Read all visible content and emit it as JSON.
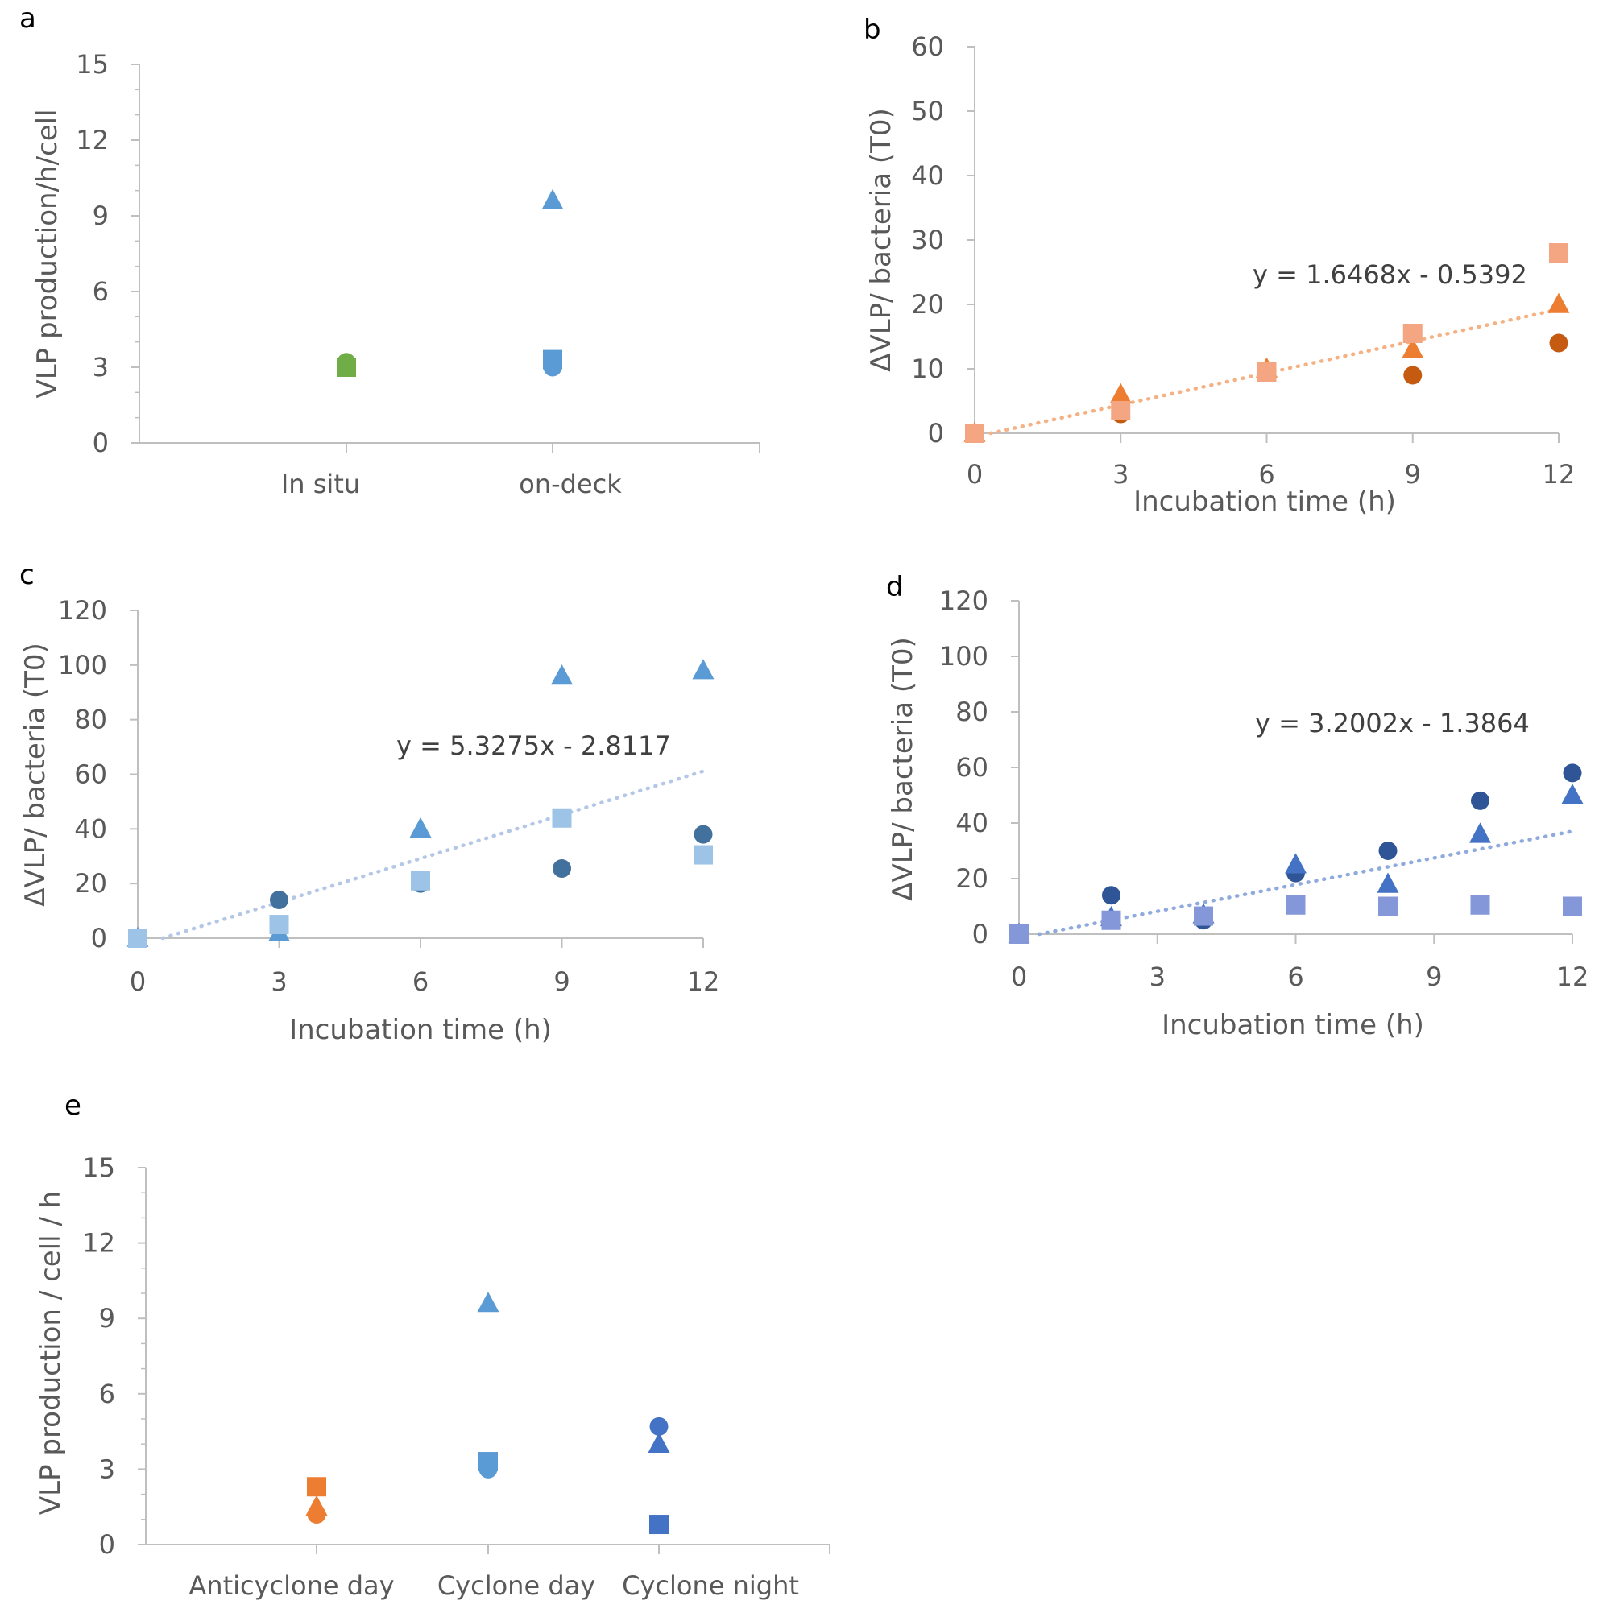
{
  "chart_data": [
    {
      "id": "a",
      "type": "scatter",
      "panel_label": "a",
      "ylabel": "VLP production/h/cell",
      "xlabel": "",
      "categories": [
        "In situ",
        "on-deck"
      ],
      "ylim": [
        0,
        15
      ],
      "yticks": [
        "0",
        "3",
        "6",
        "9",
        "12",
        "15"
      ],
      "grid": false,
      "series": [
        {
          "name": "circle",
          "marker": "circle",
          "colors": [
            "#70AD47",
            "#5B9BD5"
          ],
          "values": [
            3.2,
            3.0
          ]
        },
        {
          "name": "square",
          "marker": "square",
          "colors": [
            "#70AD47",
            "#5B9BD5"
          ],
          "values": [
            3.0,
            3.3
          ]
        },
        {
          "name": "triangle",
          "marker": "triangle",
          "colors": [
            "#70AD47",
            "#5B9BD5"
          ],
          "values": [
            null,
            9.6
          ]
        }
      ]
    },
    {
      "id": "b",
      "type": "scatter",
      "panel_label": "b",
      "ylabel": "ΔVLP/ bacteria (T0)",
      "xlabel": "Incubation time (h)",
      "xlim": [
        0,
        12
      ],
      "ylim": [
        0,
        60
      ],
      "xticks": [
        "0",
        "3",
        "6",
        "9",
        "12"
      ],
      "yticks": [
        "0",
        "10",
        "20",
        "30",
        "40",
        "50",
        "60"
      ],
      "grid": false,
      "trendline": {
        "slope": 1.6468,
        "intercept": -0.5392,
        "color": "#F4B183",
        "label": "y = 1.6468x - 0.5392"
      },
      "series": [
        {
          "name": "circle",
          "marker": "circle",
          "color": "#C55A11",
          "x": [
            0,
            3,
            6,
            9,
            12
          ],
          "y": [
            0,
            3,
            9.5,
            9,
            14
          ]
        },
        {
          "name": "triangle",
          "marker": "triangle",
          "color": "#ED7D31",
          "x": [
            0,
            3,
            6,
            9,
            12
          ],
          "y": [
            0,
            6,
            10,
            13,
            20
          ]
        },
        {
          "name": "square",
          "marker": "square",
          "color": "#F4A582",
          "x": [
            0,
            3,
            6,
            9,
            12
          ],
          "y": [
            0,
            3.5,
            9.5,
            15.5,
            28
          ]
        }
      ]
    },
    {
      "id": "c",
      "type": "scatter",
      "panel_label": "c",
      "ylabel": "ΔVLP/ bacteria (T0)",
      "xlabel": "Incubation time (h)",
      "xlim": [
        0,
        12
      ],
      "ylim": [
        0,
        120
      ],
      "xticks": [
        "0",
        "3",
        "6",
        "9",
        "12"
      ],
      "yticks": [
        "0",
        "20",
        "40",
        "60",
        "80",
        "100",
        "120"
      ],
      "grid": false,
      "trendline": {
        "slope": 5.3275,
        "intercept": -2.8117,
        "color": "#B4C7E7",
        "label": "y = 5.3275x - 2.8117"
      },
      "series": [
        {
          "name": "circle",
          "marker": "circle",
          "color": "#41719C",
          "x": [
            0,
            3,
            6,
            9,
            12
          ],
          "y": [
            0,
            14,
            20,
            25.5,
            38
          ]
        },
        {
          "name": "triangle",
          "marker": "triangle",
          "color": "#5B9BD5",
          "x": [
            0,
            3,
            6,
            9,
            12
          ],
          "y": [
            0,
            2,
            40,
            96,
            98
          ]
        },
        {
          "name": "square",
          "marker": "square",
          "color": "#9DC3E6",
          "x": [
            0,
            3,
            6,
            9,
            12
          ],
          "y": [
            0,
            5,
            21,
            44,
            30.5
          ]
        }
      ]
    },
    {
      "id": "d",
      "type": "scatter",
      "panel_label": "d",
      "ylabel": "ΔVLP/ bacteria (T0)",
      "xlabel": "Incubation time (h)",
      "xlim": [
        0,
        12
      ],
      "ylim": [
        0,
        120
      ],
      "xticks": [
        "0",
        "3",
        "6",
        "9",
        "12"
      ],
      "yticks": [
        "0",
        "20",
        "40",
        "60",
        "80",
        "100",
        "120"
      ],
      "grid": false,
      "trendline": {
        "slope": 3.2002,
        "intercept": -1.3864,
        "color": "#8FAADC",
        "label": "y = 3.2002x - 1.3864"
      },
      "series": [
        {
          "name": "circle",
          "marker": "circle",
          "color": "#2F5597",
          "x": [
            0,
            2,
            4,
            6,
            8,
            10,
            12
          ],
          "y": [
            0,
            14,
            5,
            22,
            30,
            48,
            58
          ]
        },
        {
          "name": "triangle",
          "marker": "triangle",
          "color": "#4472C4",
          "x": [
            0,
            2,
            4,
            6,
            8,
            10,
            12
          ],
          "y": [
            0,
            6,
            7,
            25,
            18,
            36,
            50
          ]
        },
        {
          "name": "square",
          "marker": "square",
          "color": "#8497D9",
          "x": [
            0,
            2,
            4,
            6,
            8,
            10,
            12
          ],
          "y": [
            0,
            5,
            6.5,
            10.5,
            10,
            10.5,
            10
          ]
        }
      ]
    },
    {
      "id": "e",
      "type": "scatter",
      "panel_label": "e",
      "ylabel": "VLP production / cell / h",
      "xlabel": "",
      "categories": [
        "Anticyclone day",
        "Cyclone day",
        "Cyclone night"
      ],
      "ylim": [
        0,
        15
      ],
      "yticks": [
        "0",
        "3",
        "6",
        "9",
        "12",
        "15"
      ],
      "grid": false,
      "series": [
        {
          "name": "circle",
          "marker": "circle",
          "colors": [
            "#ED7D31",
            "#5B9BD5",
            "#4472C4"
          ],
          "values": [
            1.2,
            3.0,
            4.7
          ]
        },
        {
          "name": "triangle",
          "marker": "triangle",
          "colors": [
            "#ED7D31",
            "#5B9BD5",
            "#4472C4"
          ],
          "values": [
            1.5,
            9.6,
            4.0
          ]
        },
        {
          "name": "square",
          "marker": "square",
          "colors": [
            "#ED7D31",
            "#5B9BD5",
            "#4472C4"
          ],
          "values": [
            2.3,
            3.3,
            0.8
          ]
        }
      ]
    }
  ]
}
